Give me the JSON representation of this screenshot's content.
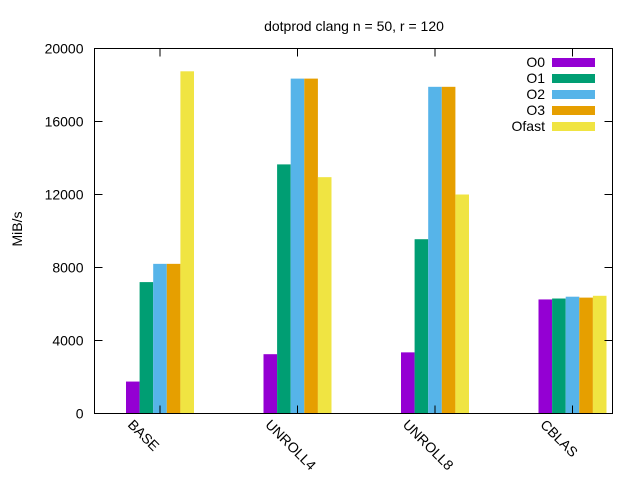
{
  "chart_data": {
    "type": "bar",
    "title": "dotprod clang n = 50, r = 120",
    "xlabel": "",
    "ylabel": "MiB/s",
    "ylim": [
      0,
      20000
    ],
    "yticks": [
      0,
      4000,
      8000,
      12000,
      16000,
      20000
    ],
    "categories": [
      "BASE",
      "UNROLL4",
      "UNROLL8",
      "CBLAS"
    ],
    "legend_position": "top-right",
    "grid": false,
    "series": [
      {
        "name": "O0",
        "color": "#9400d3",
        "values": [
          1750,
          3250,
          3350,
          6250
        ]
      },
      {
        "name": "O1",
        "color": "#009e73",
        "values": [
          7200,
          13650,
          9550,
          6300
        ]
      },
      {
        "name": "O2",
        "color": "#56b4e9",
        "values": [
          8200,
          18350,
          17900,
          6400
        ]
      },
      {
        "name": "O3",
        "color": "#e69f00",
        "values": [
          8200,
          18350,
          17900,
          6350
        ]
      },
      {
        "name": "Ofast",
        "color": "#f0e442",
        "values": [
          18750,
          12950,
          12000,
          6450
        ]
      }
    ]
  }
}
